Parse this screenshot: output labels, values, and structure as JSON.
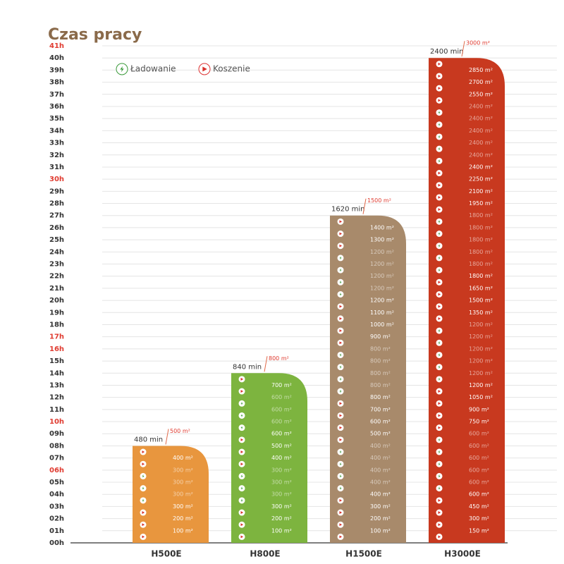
{
  "chart_data": {
    "type": "bar",
    "title": "Czas pracy",
    "legend": [
      "Ładowanie",
      "Koszenie"
    ],
    "categories": [
      "H500E",
      "H800E",
      "H1500E",
      "H3000E"
    ],
    "values": [
      8,
      14,
      27,
      40
    ],
    "value_labels": [
      "480 min",
      "840 min",
      "1620 min",
      "2400 min"
    ],
    "colors": [
      "#e8963e",
      "#7db43f",
      "#a88a6b",
      "#c8391f"
    ],
    "top_area_labels": [
      "500 m²",
      "800 m²",
      "1500 m²",
      "3000 m²"
    ],
    "icons": [
      [
        1,
        1,
        1,
        0,
        0,
        0,
        1,
        1
      ],
      [
        1,
        1,
        1,
        0,
        0,
        0,
        1,
        1,
        1,
        0,
        0,
        0,
        1,
        1
      ],
      [
        1,
        1,
        1,
        1,
        0,
        0,
        0,
        0,
        1,
        1,
        1,
        1,
        0,
        0,
        0,
        0,
        1,
        1,
        1,
        1,
        0,
        0,
        0,
        0,
        1,
        1,
        1
      ],
      [
        1,
        1,
        1,
        1,
        0,
        0,
        0,
        0,
        0,
        1,
        1,
        1,
        1,
        0,
        0,
        0,
        0,
        0,
        1,
        1,
        1,
        1,
        0,
        0,
        0,
        0,
        0,
        1,
        1,
        1,
        1,
        0,
        0,
        0,
        0,
        0,
        1,
        1,
        1,
        1
      ]
    ],
    "area_labels": [
      [
        "100 m²",
        "200 m²",
        "300 m²",
        "300 m²",
        "300 m²",
        "300 m²",
        "400 m²"
      ],
      [
        "100 m²",
        "200 m²",
        "300 m²",
        "300 m²",
        "300 m²",
        "300 m²",
        "400 m²",
        "500 m²",
        "600 m²",
        "600 m²",
        "600 m²",
        "600 m²",
        "700 m²"
      ],
      [
        "100 m²",
        "200 m²",
        "300 m²",
        "400 m²",
        "400 m²",
        "400 m²",
        "400 m²",
        "400 m²",
        "500 m²",
        "600 m²",
        "700 m²",
        "800 m²",
        "800 m²",
        "800 m²",
        "800 m²",
        "800 m²",
        "900 m²",
        "1000 m²",
        "1100 m²",
        "1200 m²",
        "1200 m²",
        "1200 m²",
        "1200 m²",
        "1200 m²",
        "1300 m²",
        "1400 m²"
      ],
      [
        "150 m²",
        "300 m²",
        "450 m²",
        "600 m²",
        "600 m²",
        "600 m²",
        "600 m²",
        "600 m²",
        "600 m²",
        "750 m²",
        "900 m²",
        "1050 m²",
        "1200 m²",
        "1200 m²",
        "1200 m²",
        "1200 m²",
        "1200 m²",
        "1200 m²",
        "1350 m²",
        "1500 m²",
        "1650 m²",
        "1800 m²",
        "1800 m²",
        "1800 m²",
        "1800 m²",
        "1800 m²",
        "1800 m²",
        "1950 m²",
        "2100 m²",
        "2250 m²",
        "2400 m²",
        "2400 m²",
        "2400 m²",
        "2400 m²",
        "2400 m²",
        "2400 m²",
        "2550 m²",
        "2700 m²",
        "2850 m²"
      ]
    ],
    "ylim": [
      0,
      41
    ],
    "yticks": [
      {
        "value": 0,
        "label": "00h"
      },
      {
        "value": 1,
        "label": "01h"
      },
      {
        "value": 2,
        "label": "02h"
      },
      {
        "value": 3,
        "label": "03h"
      },
      {
        "value": 4,
        "label": "04h"
      },
      {
        "value": 5,
        "label": "05h"
      },
      {
        "value": 6,
        "label": "06h"
      },
      {
        "value": 7,
        "label": "07h"
      },
      {
        "value": 8,
        "label": "08h"
      },
      {
        "value": 9,
        "label": "09h"
      },
      {
        "value": 10,
        "label": "10h"
      },
      {
        "value": 11,
        "label": "11h"
      },
      {
        "value": 12,
        "label": "12h"
      },
      {
        "value": 13,
        "label": "13h"
      },
      {
        "value": 14,
        "label": "14h"
      },
      {
        "value": 15,
        "label": "15h"
      },
      {
        "value": 16,
        "label": "16h"
      },
      {
        "value": 17,
        "label": "17h"
      },
      {
        "value": 18,
        "label": "18h"
      },
      {
        "value": 19,
        "label": "19h"
      },
      {
        "value": 20,
        "label": "20h"
      },
      {
        "value": 21,
        "label": "21h"
      },
      {
        "value": 22,
        "label": "22h"
      },
      {
        "value": 23,
        "label": "23h"
      },
      {
        "value": 24,
        "label": "24h"
      },
      {
        "value": 25,
        "label": "25h"
      },
      {
        "value": 26,
        "label": "26h"
      },
      {
        "value": 27,
        "label": "27h"
      },
      {
        "value": 28,
        "label": "28h"
      },
      {
        "value": 29,
        "label": "29h"
      },
      {
        "value": 30,
        "label": "30h"
      },
      {
        "value": 31,
        "label": "31h"
      },
      {
        "value": 32,
        "label": "32h"
      },
      {
        "value": 33,
        "label": "33h"
      },
      {
        "value": 34,
        "label": "34h"
      },
      {
        "value": 35,
        "label": "35h"
      },
      {
        "value": 36,
        "label": "36h"
      },
      {
        "value": 37,
        "label": "37h"
      },
      {
        "value": 38,
        "label": "38h"
      },
      {
        "value": 39,
        "label": "39h"
      },
      {
        "value": 40,
        "label": "40h"
      },
      {
        "value": 41,
        "label": "41h"
      }
    ],
    "highlighted_yticks": [
      6,
      10,
      16,
      17,
      30,
      41
    ],
    "highlight_color": "#e03c31",
    "grid": true
  }
}
